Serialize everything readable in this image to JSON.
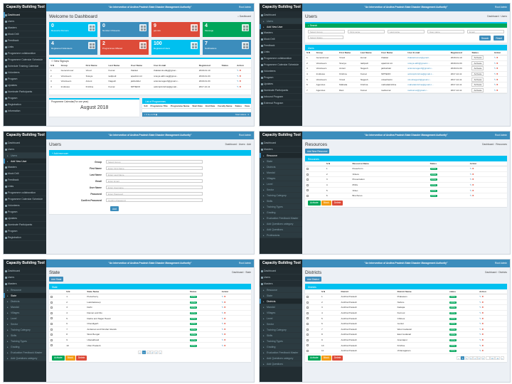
{
  "app": {
    "brand": "Capacity Building Tool",
    "header_title": "\"An Intervention of Andhra Pradesh State Disaster Management Authority\"",
    "user": "Root Admin"
  },
  "menus": {
    "dashboard_menu": [
      "Dashboard",
      "Users",
      "Masters",
      "Mock Drill",
      "Feedback",
      "Links",
      "Programme collaboration",
      "Programme Calendar Schedule",
      "Schedule Training Calendar",
      "Volunteers",
      "Program",
      "Updates",
      "Nominate Participants",
      "Program",
      "Registration",
      "Information"
    ],
    "users_menu": [
      "Dashboard",
      "Users",
      "Add New User",
      "Masters",
      "Mock Drill",
      "Feedback",
      "Links",
      "Programme collaboration",
      "Programme Calendar Schedule",
      "Volunteers",
      "Program",
      "Updates",
      "Nominate Participants",
      "Inbound Program",
      "External Program"
    ],
    "add_menu": [
      "Dashboard",
      "Users",
      "Users",
      "Add New User",
      "Masters",
      "Mock Drill",
      "Feedback",
      "Links",
      "Programme collaboration",
      "Programme Calendar Schedule",
      "Volunteers",
      "Program",
      "Updates",
      "Nominate Participants",
      "Program",
      "Registration"
    ],
    "resources_menu": [
      "Dashboard",
      "Masters",
      "Resource",
      "State",
      "Districts",
      "Mandal",
      "Villages",
      "Level",
      "Sector",
      "Training Category",
      "Skills",
      "Training Types",
      "Grading",
      "Evaluation Feedback Master",
      "Add Questions category",
      "Add Questions",
      "Professions"
    ],
    "state_menu": [
      "Dashboard",
      "Users",
      "Masters",
      "Resource",
      "State",
      "Districts",
      "Mandal",
      "Villages",
      "Level",
      "Sector",
      "Training Category",
      "Skills",
      "Training Types",
      "Grading",
      "Evaluation Feedback Master",
      "Add Questions category"
    ],
    "districts_menu": [
      "Dashboard",
      "Users",
      "Masters",
      "Resource",
      "State",
      "Districts",
      "Mandal",
      "Villages",
      "Level",
      "Sector",
      "Training Category",
      "Skills",
      "Training Types",
      "Grading",
      "Evaluation Feedback Master",
      "Add Questions category",
      "Add Questions"
    ]
  },
  "dashboard": {
    "title": "Welcome to Dashboard",
    "breadcrumb": "Dashboard",
    "tiles": [
      {
        "n": "0",
        "l": "Resource Persons"
      },
      {
        "n": "0",
        "l": "Number Of Events"
      },
      {
        "n": "9",
        "l": "ppl-tuts"
      },
      {
        "n": "4",
        "l": "Message"
      },
      {
        "n": "4",
        "l": "Registered Volunteers"
      },
      {
        "n": "2",
        "l": "Programmes Offered"
      },
      {
        "n": "100",
        "l": "Registered Users"
      },
      {
        "n": "7",
        "l": "Notifications"
      }
    ],
    "signups_title": "New Signups",
    "signups_headers": [
      "S.N",
      "Group",
      "First Name",
      "Last Name",
      "User Name",
      "User E-mail",
      "Registered",
      "Status",
      "Action"
    ],
    "signups_rows": [
      [
        "1",
        "General user",
        "Vinod",
        "Kumar",
        "thakkar",
        "thakkarvinodkg@gmai...",
        "2018-01-10",
        "",
        ""
      ],
      [
        "2",
        "Volunteers",
        "Sravya",
        "tadipudi",
        "apadmin.int",
        "sravya.akhi.nag@gmai...",
        "2018-01-03",
        "",
        ""
      ],
      [
        "3",
        "Volunteers",
        "Antoni",
        "Nagesh",
        "jaiilnahdel",
        "antonienagesh@gmail.c...",
        "2018-01-03",
        "",
        ""
      ],
      [
        "4",
        "Institutes",
        "Krishna",
        "Kumar",
        "NPHEDO",
        "adminprkrishna@gmail...",
        "2017-12-11",
        "",
        ""
      ]
    ],
    "calendar_title": "Programme Calendar(For one year)",
    "calendar_month": "August 2018",
    "programmes_title": "List of Programmes",
    "programmes_headers": [
      "S.N",
      "Programme Title",
      "Programme Name",
      "Start Date",
      "End Date",
      "Faculty Name",
      "Status",
      "View"
    ],
    "total_visitors": "Total visitors : 3"
  },
  "users": {
    "title": "Users",
    "breadcrumb": [
      "Dashboard",
      "Users"
    ],
    "search_label": "Search",
    "placeholders": [
      "Select Group",
      "First name",
      "Last name",
      "User name",
      "Email"
    ],
    "status_placeholder": "Select Status",
    "search_btn": "Search",
    "reset_btn": "Reset",
    "headers": [
      "S.N",
      "Group",
      "First Name",
      "Last Name",
      "User Name",
      "User E-mail",
      "Registered",
      "Status",
      "Action"
    ],
    "rows": [
      [
        "1",
        "General user",
        "Vinod",
        "kumar",
        "thakkar",
        "thakkarkumar@gmail...",
        "2018-01-10",
        "Activate"
      ],
      [
        "2",
        "Volunteers",
        "Sravya",
        "tadipudi",
        "apadmin.int",
        "sravya.akhi@gmail.c...",
        "2018-01-03",
        "Activate"
      ],
      [
        "3",
        "Volunteers",
        "Antoni",
        "Nagesh",
        "jaiilnahdel",
        "antonienagesh@gmail.c...",
        "2018-01-03",
        "Activate"
      ],
      [
        "4",
        "Institutes",
        "Krishna",
        "Kumar",
        "NPHEDO",
        "adminprkrishna@gmail.c...",
        "2017-12-11",
        "Activate"
      ],
      [
        "5",
        "Volunteers",
        "Vinod",
        "Nagesh",
        "vnkachanin",
        "vinodnagesh@gmail.c...",
        "2017-12-11",
        "Activate"
      ],
      [
        "6",
        "Agencies",
        "Mahatia",
        "Krishna",
        "mahatiakrishna",
        "mahatiakrishna@gmail.c...",
        "2017-12-11",
        "Activate"
      ],
      [
        "7",
        "Agencies",
        "Ravi",
        "Kumar",
        "ravikumar",
        "ravikumar@gmail.c...",
        "2017-12-11",
        "Activate"
      ]
    ]
  },
  "add_user": {
    "title": "Users",
    "breadcrumb": [
      "Dashboard",
      "Users",
      "Add"
    ],
    "box_title": "Add new user",
    "fields": [
      {
        "label": "Group",
        "placeholder": "Select Group"
      },
      {
        "label": "First Name",
        "placeholder": "Enter First Name"
      },
      {
        "label": "Last Name",
        "placeholder": "Enter Last Name"
      },
      {
        "label": "Email",
        "placeholder": "Enter Email"
      },
      {
        "label": "User Name",
        "placeholder": "Enter Username"
      },
      {
        "label": "Password",
        "placeholder": "Enter Password"
      },
      {
        "label": "Confirm Password",
        "placeholder": "Confirm Password"
      }
    ],
    "submit": "Add"
  },
  "resources": {
    "title": "Resources",
    "breadcrumb": [
      "Dashboard",
      "Resources"
    ],
    "add_btn": "Add New Resource",
    "box_title": "Resources",
    "headers": [
      "",
      "S.N",
      "Resource Name",
      "Status",
      "Action"
    ],
    "rows": [
      [
        "1",
        "Powerform",
        "Active"
      ],
      [
        "2",
        "Videos",
        "Active"
      ],
      [
        "3",
        "Presentation",
        "Active"
      ],
      [
        "4",
        "PDFs",
        "Active"
      ],
      [
        "5",
        "Video",
        "Active"
      ],
      [
        "6",
        "Brochures",
        "Active"
      ]
    ],
    "actions": [
      "Activate",
      "Block",
      "Delete"
    ]
  },
  "state": {
    "title": "State",
    "breadcrumb": [
      "Dashboard",
      "State"
    ],
    "add_btn": "Add State",
    "box_title": "State",
    "headers": [
      "",
      "S.N",
      "State Name",
      "Status",
      "Action"
    ],
    "rows": [
      [
        "1",
        "Puducherry",
        "Active"
      ],
      [
        "2",
        "Lakshadweep",
        "Active"
      ],
      [
        "3",
        "Delhi",
        "Active"
      ],
      [
        "4",
        "Daman and Diu",
        "Active"
      ],
      [
        "5",
        "Dadra and Nagar Haveli",
        "Active"
      ],
      [
        "6",
        "Chandigarh",
        "Active"
      ],
      [
        "7",
        "Andaman and Nicobar Islands",
        "Active"
      ],
      [
        "8",
        "West Bengal",
        "Active"
      ],
      [
        "9",
        "Uttarakhand",
        "Active"
      ],
      [
        "10",
        "Uttar Pradesh",
        "Active"
      ]
    ],
    "actions": [
      "Activate",
      "Block",
      "Delete"
    ],
    "pages": [
      "«",
      "1",
      "2",
      "3",
      "4",
      "»"
    ]
  },
  "districts": {
    "title": "Districts",
    "breadcrumb": [
      "Dashboard",
      "Districts"
    ],
    "add_btn": "Add District",
    "box_title": "Districts",
    "headers": [
      "",
      "S.N",
      "District",
      "District Name",
      "status",
      "Action"
    ],
    "rows": [
      [
        "1",
        "Andhra Pradesh",
        "Prakasam",
        "Active"
      ],
      [
        "2",
        "Andhra Pradesh",
        "Nellore",
        "Active"
      ],
      [
        "3",
        "Andhra Pradesh",
        "Kadapa",
        "Active"
      ],
      [
        "4",
        "Andhra Pradesh",
        "Kurnool",
        "Active"
      ],
      [
        "5",
        "Andhra Pradesh",
        "Chittoor",
        "Active"
      ],
      [
        "6",
        "Andhra Pradesh",
        "Guntur",
        "Active"
      ],
      [
        "7",
        "Andhra Pradesh",
        "West Godavari",
        "Active"
      ],
      [
        "8",
        "Andhra Pradesh",
        "East Godavari",
        "Active"
      ],
      [
        "9",
        "Andhra Pradesh",
        "Anantapur",
        "Active"
      ],
      [
        "10",
        "Andhra Pradesh",
        "Krishna",
        "Active"
      ],
      [
        "11",
        "Andhra Pradesh",
        "Vizianagaram",
        "Active"
      ]
    ],
    "actions": [
      "Activate",
      "Block",
      "Delete"
    ],
    "pages": [
      "«",
      "1",
      "2",
      "3",
      "4",
      "5",
      "6",
      "...",
      "10",
      "11",
      "»"
    ]
  }
}
